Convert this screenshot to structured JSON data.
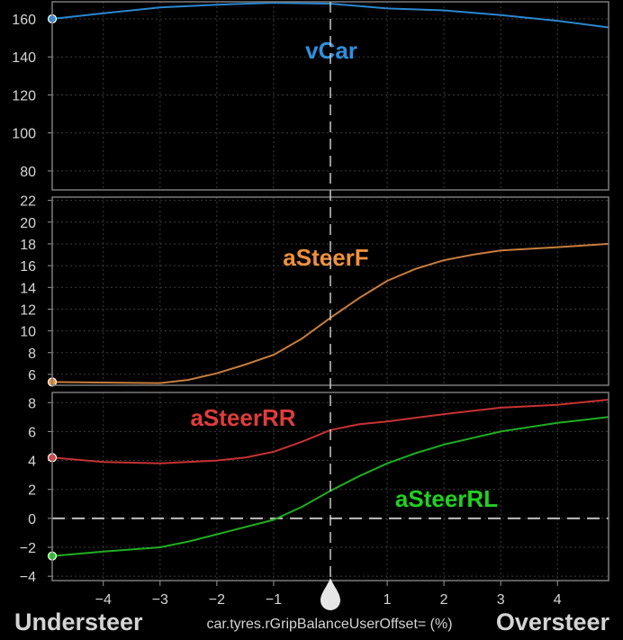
{
  "chart_data": {
    "type": "line",
    "xlabel": "car.tyres.rGripBalanceUserOffset= (%)",
    "xlim": [
      -4.9,
      4.9
    ],
    "x_ticks": [
      -4,
      -3,
      -2,
      -1,
      1,
      2,
      3,
      4
    ],
    "x_tick_labels": [
      "−4",
      "−3",
      "−2",
      "−1",
      "1",
      "2",
      "3",
      "4"
    ],
    "cursor_x": 0,
    "left_label": "Understeer",
    "right_label": "Oversteer",
    "panels": [
      {
        "name": "vcar",
        "ylim": [
          70,
          169
        ],
        "y_ticks": [
          80,
          100,
          120,
          140,
          160
        ],
        "zero_line": false,
        "series": [
          {
            "name": "vCar",
            "color": "#2a87d0",
            "label_color": "#2f8fdf",
            "x": [
              -4.9,
              -4,
              -3,
              -2,
              -1,
              0,
              1,
              2,
              3,
              4,
              4.9
            ],
            "y": [
              160,
              163,
              166,
              167.5,
              168.5,
              168,
              165.5,
              164.5,
              162,
              159,
              155.5
            ]
          }
        ]
      },
      {
        "name": "asteerf",
        "ylim": [
          5,
          22.3
        ],
        "y_ticks": [
          6,
          8,
          10,
          12,
          14,
          16,
          18,
          20,
          22
        ],
        "zero_line": false,
        "series": [
          {
            "name": "aSteerF",
            "color": "#c87d3c",
            "label_color": "#f0913c",
            "x": [
              -4.9,
              -4,
              -3,
              -2.5,
              -2,
              -1.5,
              -1,
              -0.5,
              0,
              0.5,
              1,
              1.5,
              2,
              2.5,
              3,
              4,
              4.9
            ],
            "y": [
              5.3,
              5.25,
              5.2,
              5.5,
              6.1,
              6.9,
              7.8,
              9.3,
              11.2,
              13,
              14.6,
              15.7,
              16.5,
              17,
              17.4,
              17.7,
              18
            ]
          }
        ]
      },
      {
        "name": "asteerrear",
        "ylim": [
          -4.3,
          8.7
        ],
        "y_ticks": [
          -4,
          -2,
          0,
          2,
          4,
          6,
          8
        ],
        "zero_line": true,
        "series": [
          {
            "name": "aSteerRR",
            "color": "#c83232",
            "label_color": "#e03c3c",
            "x": [
              -4.9,
              -4,
              -3,
              -2,
              -1.5,
              -1,
              -0.5,
              0,
              0.5,
              1,
              1.5,
              2,
              3,
              4,
              4.9
            ],
            "y": [
              4.2,
              3.9,
              3.8,
              4,
              4.2,
              4.6,
              5.3,
              6.1,
              6.5,
              6.7,
              6.95,
              7.2,
              7.65,
              7.85,
              8.2
            ]
          },
          {
            "name": "aSteerRL",
            "color": "#1fae1f",
            "label_color": "#22d022",
            "x": [
              -4.9,
              -4,
              -3,
              -2.5,
              -2,
              -1.5,
              -1,
              -0.5,
              0,
              0.5,
              1,
              1.5,
              2,
              3,
              4,
              4.9
            ],
            "y": [
              -2.6,
              -2.3,
              -2,
              -1.6,
              -1.1,
              -0.6,
              -0.1,
              0.8,
              1.9,
              2.9,
              3.8,
              4.5,
              5.1,
              6,
              6.6,
              7
            ]
          }
        ]
      }
    ]
  }
}
